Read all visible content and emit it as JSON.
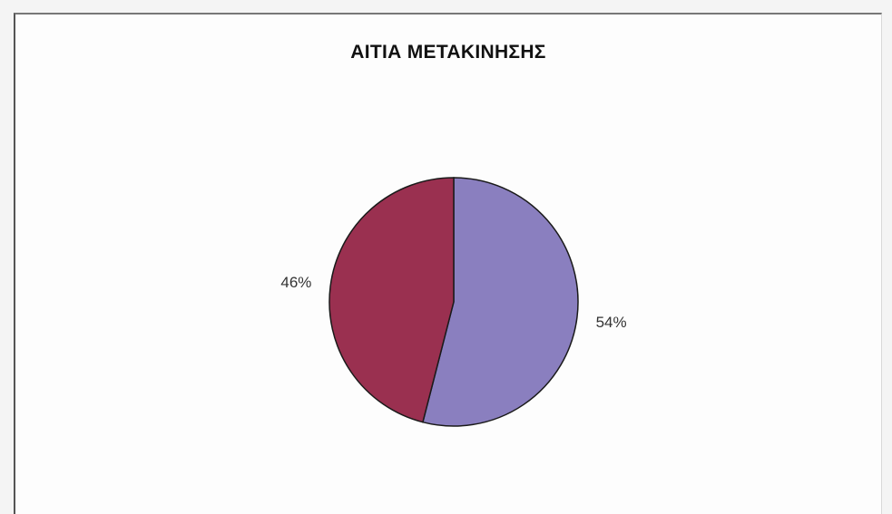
{
  "chart_data": {
    "type": "pie",
    "title": "ΑΙΤΙΑ ΜΕΤΑΚΙΝΗΣΗΣ",
    "slices": [
      {
        "value": 54,
        "label": "54%",
        "color": "#8a7fbf"
      },
      {
        "value": 46,
        "label": "46%",
        "color": "#9a3050"
      }
    ]
  }
}
